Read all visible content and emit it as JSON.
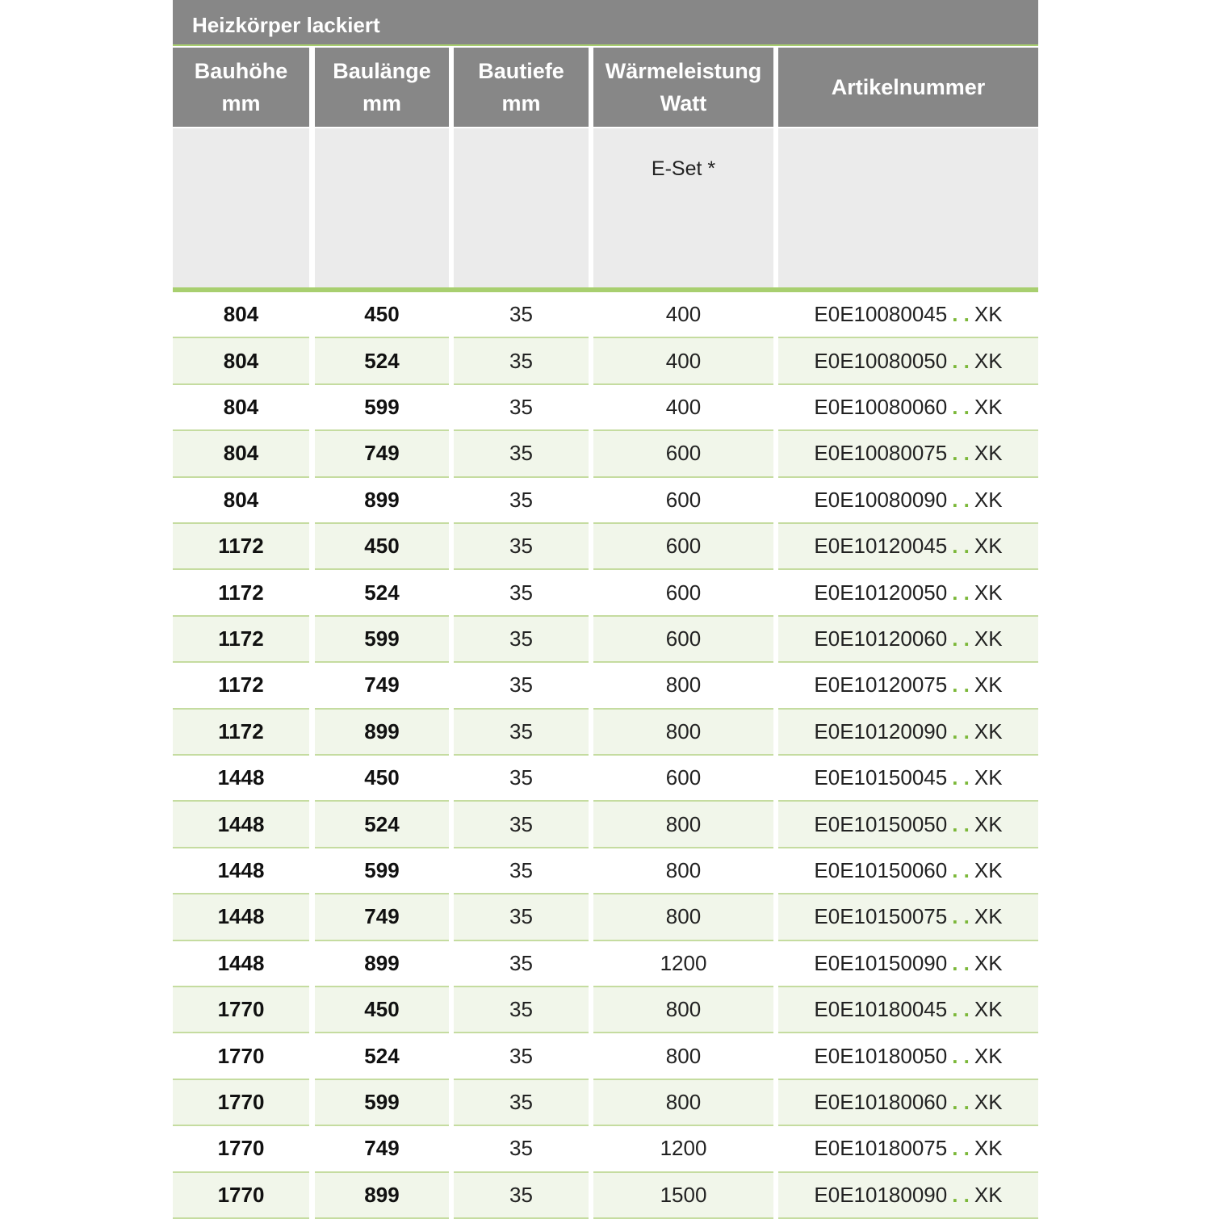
{
  "header": {
    "title": "Heizkörper lackiert"
  },
  "table": {
    "columns": [
      [
        "Bauhöhe",
        "mm"
      ],
      [
        "Baulänge",
        "mm"
      ],
      [
        "Bautiefe",
        "mm"
      ],
      [
        "Wärmeleistung",
        "Watt"
      ],
      [
        "Artikelnummer"
      ]
    ],
    "subheader": {
      "column": 3,
      "text": "E-Set *"
    },
    "article_separator": ". .",
    "article_suffix": "XK",
    "rows": [
      [
        804,
        450,
        35,
        400,
        "E0E10080045"
      ],
      [
        804,
        524,
        35,
        400,
        "E0E10080050"
      ],
      [
        804,
        599,
        35,
        400,
        "E0E10080060"
      ],
      [
        804,
        749,
        35,
        600,
        "E0E10080075"
      ],
      [
        804,
        899,
        35,
        600,
        "E0E10080090"
      ],
      [
        1172,
        450,
        35,
        600,
        "E0E10120045"
      ],
      [
        1172,
        524,
        35,
        600,
        "E0E10120050"
      ],
      [
        1172,
        599,
        35,
        600,
        "E0E10120060"
      ],
      [
        1172,
        749,
        35,
        800,
        "E0E10120075"
      ],
      [
        1172,
        899,
        35,
        800,
        "E0E10120090"
      ],
      [
        1448,
        450,
        35,
        600,
        "E0E10150045"
      ],
      [
        1448,
        524,
        35,
        800,
        "E0E10150050"
      ],
      [
        1448,
        599,
        35,
        800,
        "E0E10150060"
      ],
      [
        1448,
        749,
        35,
        800,
        "E0E10150075"
      ],
      [
        1448,
        899,
        35,
        1200,
        "E0E10150090"
      ],
      [
        1770,
        450,
        35,
        800,
        "E0E10180045"
      ],
      [
        1770,
        524,
        35,
        800,
        "E0E10180050"
      ],
      [
        1770,
        599,
        35,
        800,
        "E0E10180060"
      ],
      [
        1770,
        749,
        35,
        1200,
        "E0E10180075"
      ],
      [
        1770,
        899,
        35,
        1500,
        "E0E10180090"
      ]
    ]
  }
}
